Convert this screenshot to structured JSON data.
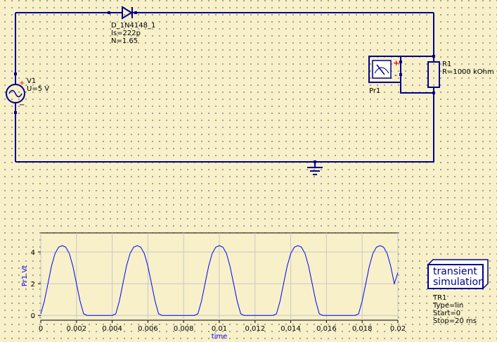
{
  "colors": {
    "wire": "#00008b",
    "background": "#f7f0c9",
    "plot_line": "#0000ff",
    "pin": "#ff0000",
    "axis_label": "#0000ff"
  },
  "components": {
    "diode": {
      "name": "D_1N4148_1",
      "param1": "Is=222p",
      "param2": "N=1.65"
    },
    "source": {
      "name": "V1",
      "value": "U=5 V",
      "plus": "+",
      "minus": "−"
    },
    "resistor": {
      "name": "R1",
      "value": "R=1000 kOhm"
    },
    "probe": {
      "name": "Pr1",
      "plus": "+",
      "minus": "-"
    },
    "ground": {
      "icon": "ground-icon"
    }
  },
  "simulation": {
    "title_line1": "transient",
    "title_line2": "simulation",
    "name": "TR1",
    "type": "Type=lin",
    "start": "Start=0",
    "stop": "Stop=20 ms"
  },
  "chart_data": {
    "type": "line",
    "xlabel": "time",
    "ylabel": "Pr1.Vt",
    "xlim": [
      0,
      0.02
    ],
    "ylim": [
      -0.3,
      5.2
    ],
    "xticks": [
      {
        "v": 0,
        "label": "0"
      },
      {
        "v": 0.002,
        "label": "0.002"
      },
      {
        "v": 0.004,
        "label": "0.004"
      },
      {
        "v": 0.006,
        "label": "0.006"
      },
      {
        "v": 0.008,
        "label": "0.008"
      },
      {
        "v": 0.01,
        "label": "0.01"
      },
      {
        "v": 0.012,
        "label": "0.012"
      },
      {
        "v": 0.014,
        "label": "0.014"
      },
      {
        "v": 0.016,
        "label": "0.016"
      },
      {
        "v": 0.018,
        "label": "0.018"
      },
      {
        "v": 0.02,
        "label": "0.02"
      }
    ],
    "yticks": [
      {
        "v": 0,
        "label": "0"
      },
      {
        "v": 2,
        "label": "2"
      },
      {
        "v": 4,
        "label": "4"
      }
    ],
    "grid": true,
    "series": [
      {
        "x": [
          0,
          0.0002,
          0.0004,
          0.0006,
          0.0008,
          0.001,
          0.0012,
          0.0014,
          0.0016,
          0.0018,
          0.002,
          0.0022,
          0.0024,
          0.0026,
          0.004,
          0.0042,
          0.0044,
          0.0046,
          0.0048,
          0.005,
          0.0052,
          0.0054,
          0.0056,
          0.0058,
          0.006,
          0.0062,
          0.0064,
          0.0066,
          0.0068,
          0.007,
          0.0086,
          0.0088,
          0.009,
          0.0092,
          0.0094,
          0.0096,
          0.0098,
          0.01,
          0.0102,
          0.0104,
          0.0106,
          0.0108,
          0.011,
          0.0112,
          0.0114,
          0.0116,
          0.013,
          0.0132,
          0.0134,
          0.0136,
          0.0138,
          0.014,
          0.0142,
          0.0144,
          0.0146,
          0.0148,
          0.015,
          0.0152,
          0.0154,
          0.0156,
          0.0158,
          0.016,
          0.0176,
          0.0178,
          0.018,
          0.0182,
          0.0184,
          0.0186,
          0.0188,
          0.019,
          0.0192,
          0.0194,
          0.0196,
          0.0198,
          0.02
        ],
        "y": [
          0.1,
          0.9,
          2.0,
          3.1,
          3.9,
          4.3,
          4.4,
          4.3,
          3.9,
          3.1,
          2.0,
          0.9,
          0.1,
          0,
          0,
          0.1,
          0.9,
          2.0,
          3.1,
          3.9,
          4.3,
          4.4,
          4.3,
          3.9,
          3.1,
          2.0,
          0.9,
          0.1,
          0,
          0,
          0,
          0.1,
          0.9,
          2.0,
          3.1,
          3.9,
          4.3,
          4.4,
          4.3,
          3.9,
          3.1,
          2.0,
          0.9,
          0.1,
          0,
          0,
          0,
          0.1,
          0.9,
          2.0,
          3.1,
          3.9,
          4.3,
          4.4,
          4.3,
          3.9,
          3.1,
          2.0,
          0.9,
          0.1,
          0,
          0,
          0,
          0.1,
          0.9,
          2.0,
          3.1,
          3.9,
          4.3,
          4.4,
          4.3,
          3.9,
          3.1,
          2.0,
          2.7
        ]
      }
    ]
  }
}
